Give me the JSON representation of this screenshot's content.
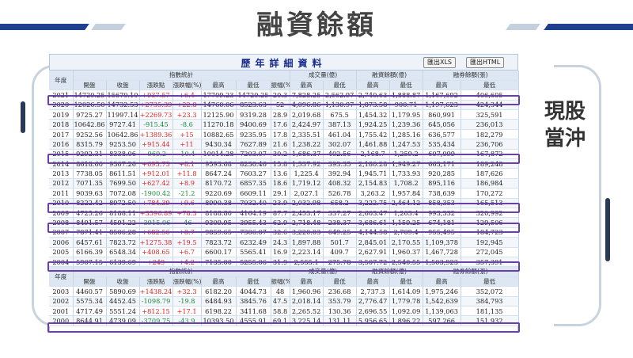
{
  "slide": {
    "title": "融資餘額",
    "note_line1": "現股",
    "note_line2": "當沖",
    "colors": {
      "stripe_dark": "#1f3f8f",
      "stripe_light": "#c5d0de",
      "highlight": "#6a3fa8",
      "up": "#e02020",
      "down": "#1a8a3a"
    }
  },
  "panel": {
    "title": "歷年詳細資料",
    "btn_xls": "匯出XLS",
    "btn_html": "匯出HTML"
  },
  "headers": {
    "year": "年度",
    "index_group": "指數統計",
    "open": "開盤",
    "close": "收盤",
    "change": "漲跌點",
    "change_pct": "漲跌幅(%)",
    "high": "最高",
    "low": "最低",
    "amplitude": "振幅(%)",
    "volume_group": "成交量(億)",
    "margin_group": "融資餘額(億)",
    "short_group": "融券餘額(張)"
  },
  "rows1": [
    {
      "year": "2021",
      "open": "14720.25",
      "close": "15670.10",
      "chg": "+937.57",
      "pct": "+6.4",
      "high": "17709.23",
      "low": "14720.25",
      "amp": "20.3",
      "vh": "7,828.25",
      "vl": "2,562.97",
      "mh": "2,740.63",
      "ml": "1,888.87",
      "sh": "1,167,692",
      "sl": "406,605",
      "dir": "up"
    },
    {
      "year": "2020",
      "open": "12026.50",
      "close": "14732.53",
      "chg": "+2735.39",
      "pct": "+22.8",
      "high": "14760.06",
      "low": "8523.63",
      "amp": "52",
      "vh": "4,096.86",
      "vl": "1,130.97",
      "mh": "1,873.58",
      "ml": "900.71",
      "sh": "1,197,623",
      "sl": "424,344",
      "dir": "up"
    },
    {
      "year": "2019",
      "open": "9725.27",
      "close": "11997.14",
      "chg": "+2269.73",
      "pct": "+23.3",
      "high": "12125.90",
      "low": "9319.28",
      "amp": "28.9",
      "vh": "2,019.68",
      "vl": "675.5",
      "mh": "1,454.32",
      "ml": "1,179.95",
      "sh": "860,991",
      "sl": "325,591",
      "dir": "up"
    },
    {
      "year": "2018",
      "open": "10642.86",
      "close": "9727.41",
      "chg": "-915.45",
      "pct": "-8.6",
      "high": "11270.18",
      "low": "9400.69",
      "amp": "17.6",
      "vh": "2,424.97",
      "vl": "387.13",
      "mh": "1,924.25",
      "ml": "1,239.36",
      "sh": "645,056",
      "sl": "236,013",
      "dir": "dn"
    },
    {
      "year": "2017",
      "open": "9252.56",
      "close": "10642.86",
      "chg": "+1389.36",
      "pct": "+15",
      "high": "10882.65",
      "low": "9235.95",
      "amp": "17.8",
      "vh": "2,335.51",
      "vl": "461.04",
      "mh": "1,755.42",
      "ml": "1,285.16",
      "sh": "636,577",
      "sl": "182,279",
      "dir": "up"
    },
    {
      "year": "2016",
      "open": "8315.79",
      "close": "9253.50",
      "chg": "+915.44",
      "pct": "+11",
      "high": "9430.34",
      "low": "7627.89",
      "amp": "21.6",
      "vh": "1,238.22",
      "vl": "302.07",
      "mh": "1,461.88",
      "ml": "1,247.53",
      "sh": "535,434",
      "sl": "236,706",
      "dir": "up"
    },
    {
      "year": "2015",
      "open": "9292.31",
      "close": "8338.06",
      "chg": "-969.2",
      "pct": "-10.4",
      "high": "10014.28",
      "low": "7203.07",
      "amp": "30.2",
      "vh": "1,686.37",
      "vl": "402.56",
      "mh": "2,168.7",
      "ml": "1,259.2",
      "sh": "607,099",
      "sl": "167,872",
      "dir": "dn"
    },
    {
      "year": "2014",
      "open": "8618.60",
      "close": "9307.26",
      "chg": "+695.75",
      "pct": "+8.1",
      "high": "9593.68",
      "low": "8230.46",
      "amp": "15.8",
      "vh": "1,537.92",
      "vl": "393.35",
      "mh": "2,180.28",
      "ml": "1,949.27",
      "sh": "663,171",
      "sl": "189,248",
      "dir": "up"
    },
    {
      "year": "2013",
      "open": "7738.05",
      "close": "8611.51",
      "chg": "+912.01",
      "pct": "+11.8",
      "high": "8647.24",
      "low": "7603.27",
      "amp": "13.6",
      "vh": "1,225.4",
      "vl": "392.94",
      "mh": "1,945.71",
      "ml": "1,733.93",
      "sh": "920,285",
      "sl": "187,626",
      "dir": "up"
    },
    {
      "year": "2012",
      "open": "7071.35",
      "close": "7699.50",
      "chg": "+627.42",
      "pct": "+8.9",
      "high": "8170.72",
      "low": "6857.35",
      "amp": "18.6",
      "vh": "1,719.12",
      "vl": "408.32",
      "mh": "2,154.83",
      "ml": "1,708.2",
      "sh": "895,116",
      "sl": "186,984",
      "dir": "up"
    },
    {
      "year": "2011",
      "open": "9039.63",
      "close": "7072.08",
      "chg": "-1900.42",
      "pct": "-21.2",
      "high": "9220.69",
      "low": "6609.11",
      "amp": "29.1",
      "vh": "2,027.1",
      "vl": "526.78",
      "mh": "3,263.2",
      "ml": "1,957.84",
      "sh": "738,639",
      "sl": "170,272",
      "dir": "dn"
    },
    {
      "year": "2010",
      "open": "8222.42",
      "close": "8972.50",
      "chg": "+784.39",
      "pct": "+9.6",
      "high": "8990.38",
      "low": "7032.40",
      "amp": "23.9",
      "vh": "2,032.98",
      "vl": "658.2",
      "mh": "3,222.75",
      "ml": "2,464.12",
      "sh": "858,353",
      "sl": "165,513",
      "dir": "up"
    },
    {
      "year": "2009",
      "open": "4725.26",
      "close": "8188.11",
      "chg": "+3596.89",
      "pct": "+78.3",
      "high": "8188.80",
      "low": "4164.19",
      "amp": "87.7",
      "vh": "2,453.17",
      "vl": "337.27",
      "mh": "2,603.47",
      "ml": "1,203.4",
      "sh": "993,332",
      "sl": "320,992",
      "dir": "up"
    },
    {
      "year": "2008",
      "open": "8491.57",
      "close": "4591.22",
      "chg": "-3915.06",
      "pct": "-46",
      "high": "9309.95",
      "low": "3955.43",
      "amp": "62.9",
      "vh": "2,718.48",
      "vl": "238.37",
      "mh": "3,686.61",
      "ml": "1,159.25",
      "sh": "674,181",
      "sl": "129,506",
      "dir": "dn"
    },
    {
      "year": "2007",
      "open": "7871.41",
      "close": "8506.28",
      "chg": "+682.56",
      "pct": "+8.7",
      "high": "9859.65",
      "low": "7306.07",
      "amp": "32.6",
      "vh": "3,220.03",
      "vl": "649.25",
      "mh": "4,144.58",
      "ml": "2,709.4",
      "sh": "955,495",
      "sl": "184,723",
      "dir": "up"
    },
    {
      "year": "2006",
      "open": "6457.61",
      "close": "7823.72",
      "chg": "+1275.38",
      "pct": "+19.5",
      "high": "7823.72",
      "low": "6232.49",
      "amp": "24.3",
      "vh": "1,897.88",
      "vl": "501.7",
      "mh": "2,845.01",
      "ml": "2,170.55",
      "sh": "1,109,378",
      "sl": "192,945",
      "dir": "up"
    },
    {
      "year": "2005",
      "open": "6166.39",
      "close": "6548.34",
      "chg": "+408.65",
      "pct": "+6.7",
      "high": "6600.17",
      "low": "5565.41",
      "amp": "16.9",
      "vh": "2,223.14",
      "vl": "409.7",
      "mh": "2,627.91",
      "ml": "1,960.37",
      "sh": "1,467,728",
      "sl": "272,045",
      "dir": "up"
    },
    {
      "year": "2004",
      "open": "5907.15",
      "close": "6139.69",
      "chg": "+249",
      "pct": "+4.2",
      "high": "7135.00",
      "low": "5255.06",
      "amp": "31.9",
      "vh": "2,555.1",
      "vl": "275.78",
      "mh": "3,507.72",
      "ml": "2,540.55",
      "sh": "1,503,923",
      "sl": "357,391",
      "dir": "up"
    }
  ],
  "rows2": [
    {
      "year": "2003",
      "open": "4460.57",
      "close": "5890.69",
      "chg": "+1438.24",
      "pct": "+32.3",
      "high": "6182.20",
      "low": "4044.73",
      "amp": "48",
      "vh": "1,960.96",
      "vl": "236.68",
      "mh": "2,737.3",
      "ml": "1,614.09",
      "sh": "1,975,246",
      "sl": "352,072",
      "dir": "up"
    },
    {
      "year": "2002",
      "open": "5575.34",
      "close": "4452.45",
      "chg": "-1098.79",
      "pct": "-19.8",
      "high": "6484.93",
      "low": "3845.76",
      "amp": "47.5",
      "vh": "2,018.14",
      "vl": "353.79",
      "mh": "2,776.47",
      "ml": "1,779.78",
      "sh": "1,542,639",
      "sl": "384,793",
      "dir": "dn"
    },
    {
      "year": "2001",
      "open": "4717.49",
      "close": "5551.24",
      "chg": "+812.15",
      "pct": "+17.1",
      "high": "6198.22",
      "low": "3411.68",
      "amp": "58.8",
      "vh": "2,265.52",
      "vl": "130.36",
      "mh": "2,696.55",
      "ml": "1,092.09",
      "sh": "1,139,063",
      "sl": "181,135",
      "dir": "up"
    },
    {
      "year": "2000",
      "open": "8644.91",
      "close": "4739.09",
      "chg": "-3709.75",
      "pct": "-43.9",
      "high": "10393.50",
      "low": "4555.91",
      "amp": "69.1",
      "vh": "3,225.14",
      "vl": "131.11",
      "mh": "5,956.65",
      "ml": "1,896.22",
      "sh": "597,266",
      "sl": "151,932",
      "dir": "dn"
    }
  ]
}
